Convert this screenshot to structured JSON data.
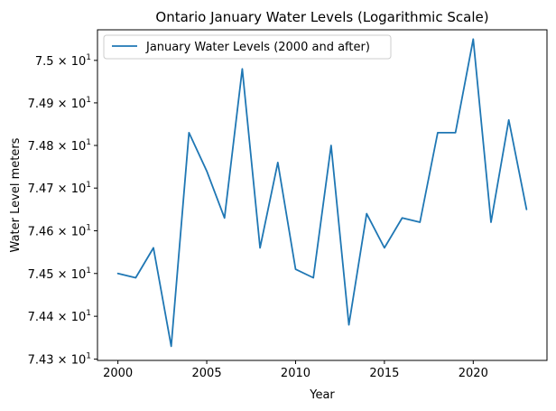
{
  "chart_data": {
    "type": "line",
    "title": "Ontario January Water Levels (Logarithmic Scale)",
    "xlabel": "Year",
    "ylabel": "Water Level meters",
    "yscale": "log",
    "grid": false,
    "legend_position": "top-left",
    "xlim": [
      1998.85,
      2024.15
    ],
    "ylim": [
      74.297,
      75.072
    ],
    "x_ticks": [
      2000,
      2005,
      2010,
      2015,
      2020
    ],
    "y_ticks": [
      {
        "value": 74.3,
        "mantissa": "7.43",
        "exponent": "1"
      },
      {
        "value": 74.4,
        "mantissa": "7.44",
        "exponent": "1"
      },
      {
        "value": 74.5,
        "mantissa": "7.45",
        "exponent": "1"
      },
      {
        "value": 74.6,
        "mantissa": "7.46",
        "exponent": "1"
      },
      {
        "value": 74.7,
        "mantissa": "7.47",
        "exponent": "1"
      },
      {
        "value": 74.8,
        "mantissa": "7.48",
        "exponent": "1"
      },
      {
        "value": 74.9,
        "mantissa": "7.49",
        "exponent": "1"
      },
      {
        "value": 75.0,
        "mantissa": "7.5",
        "exponent": "1"
      }
    ],
    "x": [
      2000,
      2001,
      2002,
      2003,
      2004,
      2005,
      2006,
      2007,
      2008,
      2009,
      2010,
      2011,
      2012,
      2013,
      2014,
      2015,
      2016,
      2017,
      2018,
      2019,
      2020,
      2021,
      2022,
      2023
    ],
    "series": [
      {
        "name": "January Water Levels (2000 and after)",
        "color": "#1f77b4",
        "values": [
          74.5,
          74.49,
          74.56,
          74.33,
          74.83,
          74.74,
          74.63,
          74.98,
          74.56,
          74.76,
          74.51,
          74.49,
          74.8,
          74.38,
          74.64,
          74.56,
          74.63,
          74.62,
          74.83,
          74.83,
          75.05,
          74.62,
          74.86,
          74.65
        ]
      }
    ]
  }
}
